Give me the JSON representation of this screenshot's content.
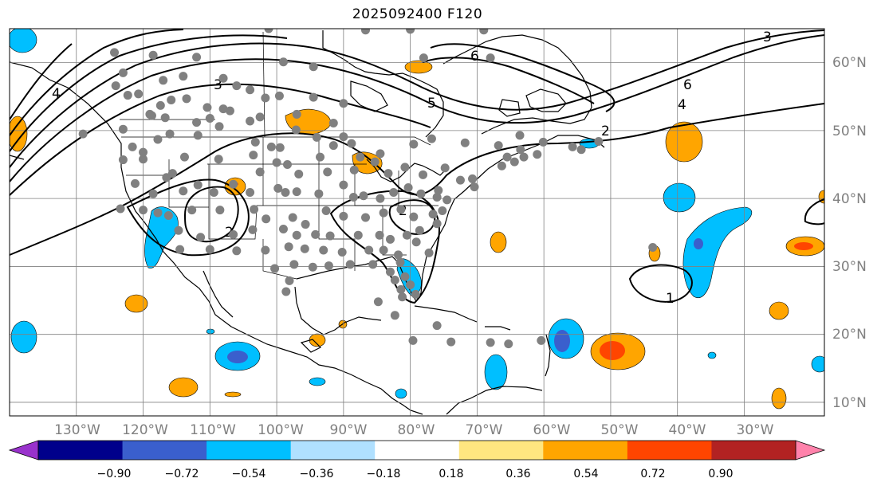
{
  "title": "2025092400 F120",
  "map": {
    "projection": "plate-carree",
    "lon_range": [
      -140,
      -18
    ],
    "lat_range": [
      8,
      65
    ],
    "graticule": "on",
    "lon_ticks": [
      {
        "lon": -130,
        "label": "130°W"
      },
      {
        "lon": -120,
        "label": "120°W"
      },
      {
        "lon": -110,
        "label": "110°W"
      },
      {
        "lon": -100,
        "label": "100°W"
      },
      {
        "lon": -90,
        "label": "90°W"
      },
      {
        "lon": -80,
        "label": "80°W"
      },
      {
        "lon": -70,
        "label": "70°W"
      },
      {
        "lon": -60,
        "label": "60°W"
      },
      {
        "lon": -50,
        "label": "50°W"
      },
      {
        "lon": -40,
        "label": "40°W"
      },
      {
        "lon": -30,
        "label": "30°W"
      }
    ],
    "lat_ticks": [
      {
        "lat": 60,
        "label": "60°N"
      },
      {
        "lat": 50,
        "label": "50°N"
      },
      {
        "lat": 40,
        "label": "40°N"
      },
      {
        "lat": 30,
        "label": "30°N"
      },
      {
        "lat": 20,
        "label": "20°N"
      },
      {
        "lat": 10,
        "label": "10°N"
      }
    ],
    "contour_labels": [
      "3",
      "4",
      "5",
      "6",
      "2",
      "4",
      "6",
      "3",
      "2",
      "1",
      "2"
    ],
    "station_color": "#808080",
    "fill_colors": {
      "light_blue": "#00bfff",
      "mid_blue": "#3a5fcd",
      "light_orange": "#ffa500",
      "red_orange": "#ff4500"
    }
  },
  "colorbar": {
    "ticks": [
      "−0.90",
      "−0.72",
      "−0.54",
      "−0.36",
      "−0.18",
      "0.18",
      "0.36",
      "0.54",
      "0.72",
      "0.90"
    ],
    "colors": [
      "#9932cc",
      "#00008b",
      "#3a5fcd",
      "#00bfff",
      "#b0e0ff",
      "#ffffff",
      "#ffe680",
      "#ffa500",
      "#ff4500",
      "#b22222",
      "#ff82ab"
    ],
    "extend": "both"
  }
}
